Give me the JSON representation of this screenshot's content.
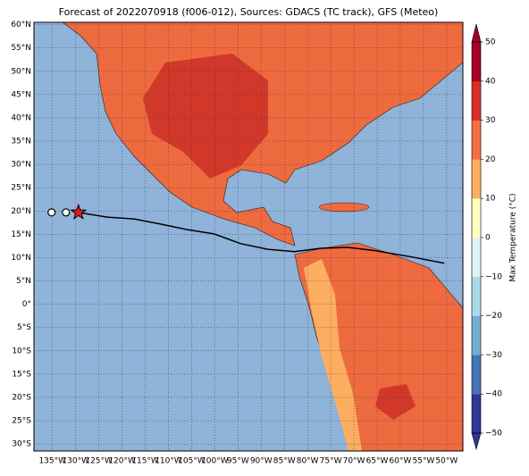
{
  "chart_data": {
    "type": "map",
    "title": "Forecast of 2022070918 (f006-012), Sources: GDACS (TC track), GFS (Meteo)",
    "xlim": [
      -139,
      -46.5
    ],
    "ylim": [
      -31.5,
      60.5
    ],
    "xticks": [
      {
        "value": -135,
        "label": "135°W"
      },
      {
        "value": -130,
        "label": "130°W"
      },
      {
        "value": -125,
        "label": "125°W"
      },
      {
        "value": -120,
        "label": "120°W"
      },
      {
        "value": -115,
        "label": "115°W"
      },
      {
        "value": -110,
        "label": "110°W"
      },
      {
        "value": -105,
        "label": "105°W"
      },
      {
        "value": -100,
        "label": "100°W"
      },
      {
        "value": -95,
        "label": "95°W"
      },
      {
        "value": -90,
        "label": "90°W"
      },
      {
        "value": -85,
        "label": "85°W"
      },
      {
        "value": -80,
        "label": "80°W"
      },
      {
        "value": -75,
        "label": "75°W"
      },
      {
        "value": -70,
        "label": "70°W"
      },
      {
        "value": -65,
        "label": "65°W"
      },
      {
        "value": -60,
        "label": "60°W"
      },
      {
        "value": -55,
        "label": "55°W"
      },
      {
        "value": -50,
        "label": "50°W"
      }
    ],
    "yticks": [
      {
        "value": 60,
        "label": "60°N"
      },
      {
        "value": 55,
        "label": "55°N"
      },
      {
        "value": 50,
        "label": "50°N"
      },
      {
        "value": 45,
        "label": "45°N"
      },
      {
        "value": 40,
        "label": "40°N"
      },
      {
        "value": 35,
        "label": "35°N"
      },
      {
        "value": 30,
        "label": "30°N"
      },
      {
        "value": 25,
        "label": "25°N"
      },
      {
        "value": 20,
        "label": "20°N"
      },
      {
        "value": 15,
        "label": "15°N"
      },
      {
        "value": 10,
        "label": "10°N"
      },
      {
        "value": 5,
        "label": "5°N"
      },
      {
        "value": 0,
        "label": "0°"
      },
      {
        "value": -5,
        "label": "5°S"
      },
      {
        "value": -10,
        "label": "10°S"
      },
      {
        "value": -15,
        "label": "15°S"
      },
      {
        "value": -20,
        "label": "20°S"
      },
      {
        "value": -25,
        "label": "25°S"
      },
      {
        "value": -30,
        "label": "30°S"
      }
    ],
    "grid": true,
    "track": {
      "color": "#000000",
      "lon": [
        -129.4,
        -123.2,
        -117.5,
        -111.7,
        -105.9,
        -100.2,
        -94.4,
        -88.6,
        -82.8,
        -77.1,
        -71.3,
        -65.5,
        -57.8,
        -50.5
      ],
      "lat": [
        19.7,
        18.7,
        18.3,
        17.2,
        16.0,
        15.1,
        13.0,
        11.8,
        11.3,
        12.0,
        12.2,
        11.5,
        10.2,
        8.8
      ]
    },
    "past_positions": {
      "lon": [
        -135.2,
        -132.1
      ],
      "lat": [
        19.7,
        19.7
      ]
    },
    "current_position": {
      "lon": -129.4,
      "lat": 19.7,
      "color": "#e41a1c"
    },
    "colorbar": {
      "label": "Max Temperature (°C)",
      "lim": [
        -50,
        50
      ],
      "ticks": [
        {
          "value": -50,
          "label": "−50"
        },
        {
          "value": -40,
          "label": "−40"
        },
        {
          "value": -30,
          "label": "−30"
        },
        {
          "value": -20,
          "label": "−20"
        },
        {
          "value": -10,
          "label": "−10"
        },
        0,
        10,
        20,
        30,
        40,
        50
      ],
      "colors": [
        "#313695",
        "#4575b4",
        "#74add1",
        "#abd9e9",
        "#e0f3f8",
        "#ffffbf",
        "#fdae61",
        "#f46d43",
        "#d73027",
        "#a50026"
      ]
    }
  }
}
